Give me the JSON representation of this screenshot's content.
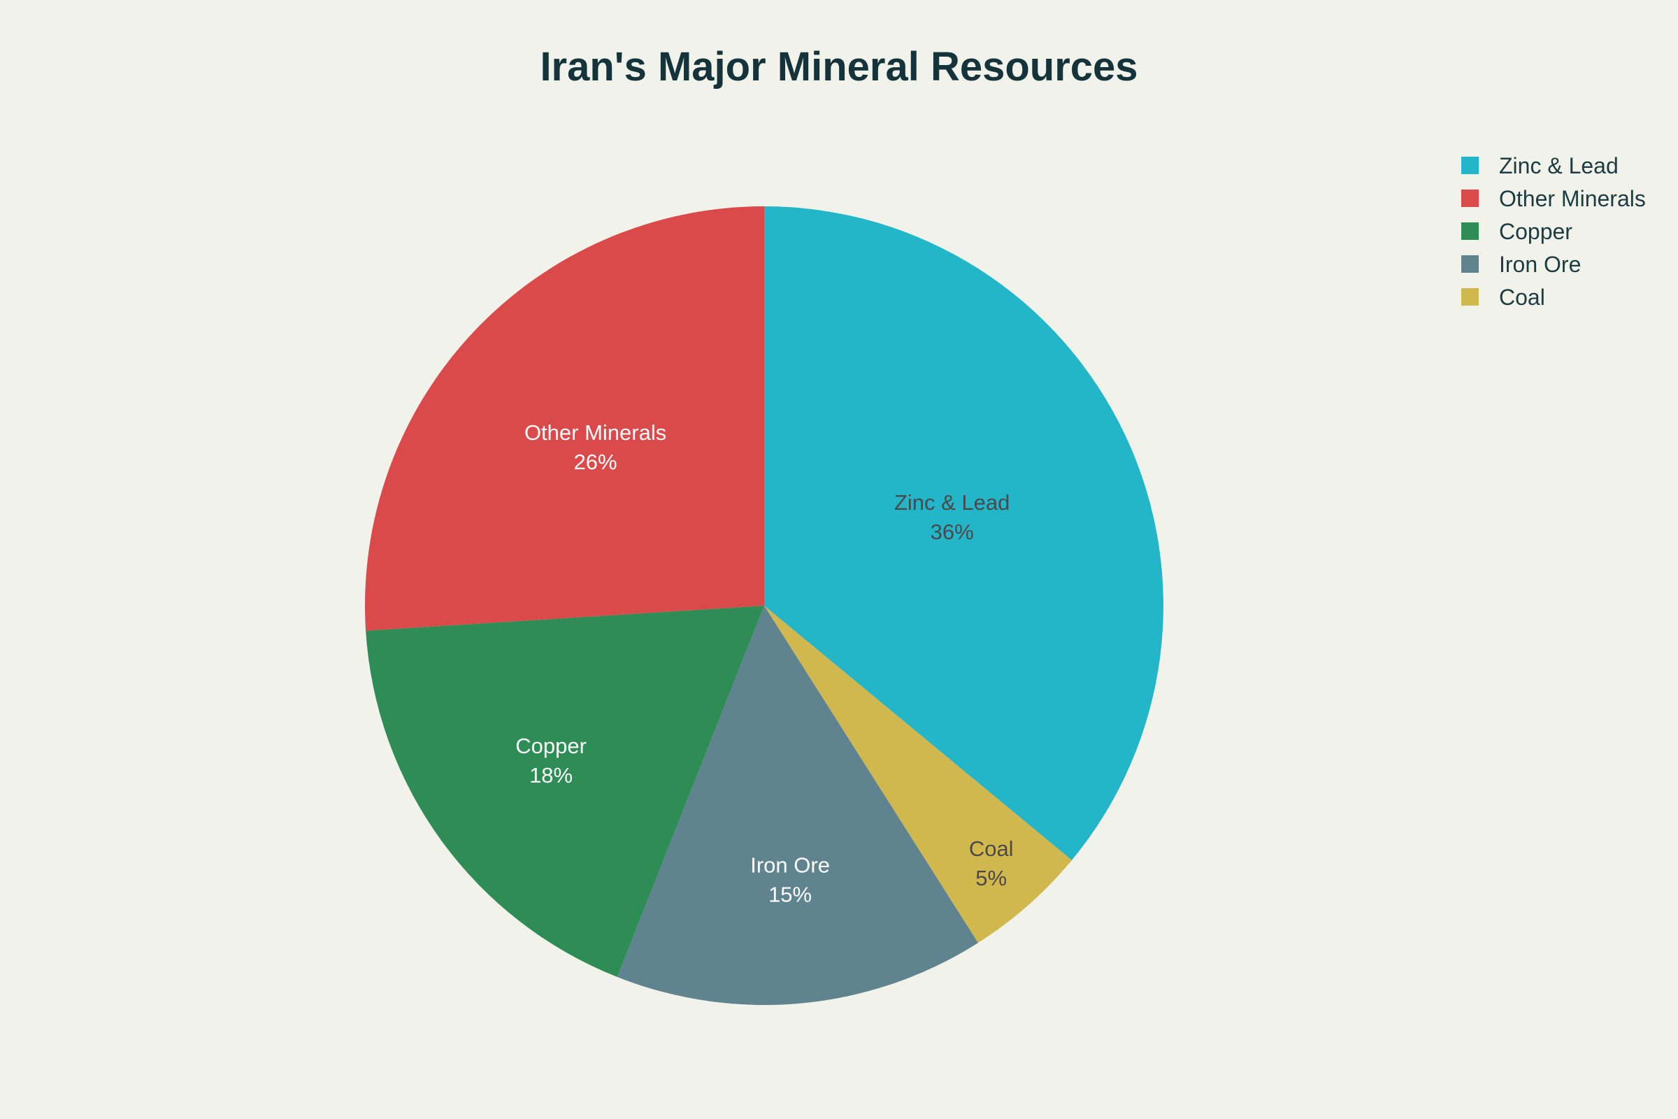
{
  "title": "Iran's Major Mineral Resources",
  "colors": {
    "background": "#f1f2ea",
    "title_text": "#15333a",
    "legend_text": "#1d3c42",
    "dark_slice_label_text": "#4a4a4a",
    "light_slice_label_text": "#ffffff"
  },
  "chart_data": {
    "type": "pie",
    "title": "Iran's Major Mineral Resources",
    "labels": [
      "Zinc & Lead",
      "Other Minerals",
      "Copper",
      "Iron Ore",
      "Coal"
    ],
    "values": [
      36,
      26,
      18,
      15,
      5
    ],
    "percent_labels": [
      "36%",
      "26%",
      "18%",
      "15%",
      "5%"
    ],
    "slice_colors": [
      "#23b5c8",
      "#da4a4a",
      "#2e8c55",
      "#5f8490",
      "#d1b84e"
    ],
    "slice_label_text_colors": [
      "#4a4a4a",
      "#ffffff",
      "#ffffff",
      "#ffffff",
      "#4a4a4a"
    ],
    "legend_position": "top-right",
    "start_angle_deg": 0,
    "sort_layout": "largest slice clockwise from top, remaining slices counterclockwise (descending)"
  }
}
